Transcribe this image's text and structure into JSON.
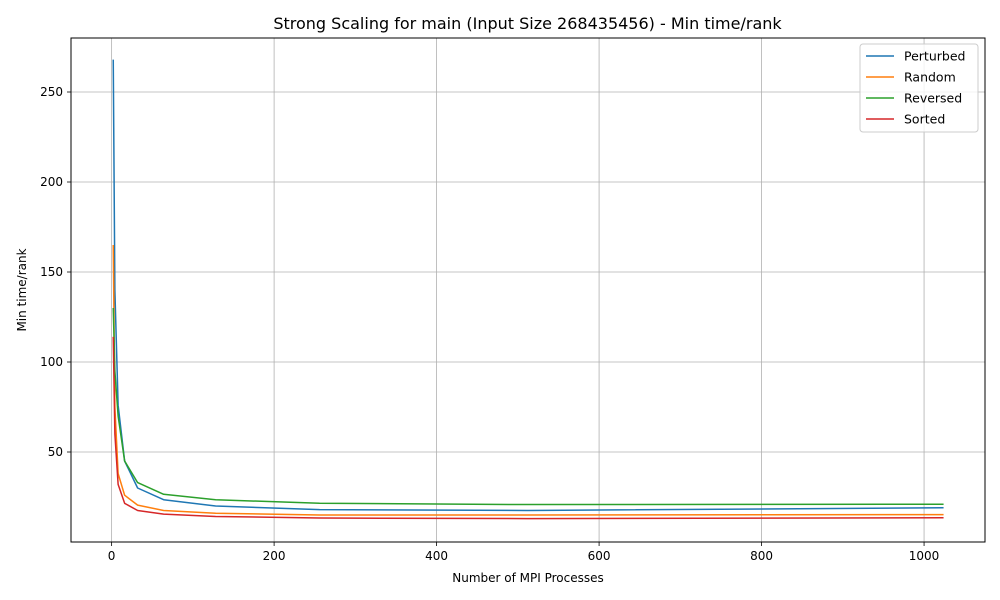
{
  "chart_data": {
    "type": "line",
    "title": "Strong Scaling for main (Input Size 268435456) - Min time/rank",
    "xlabel": "Number of MPI Processes",
    "ylabel": "Min time/rank",
    "xlim": [
      -50,
      1075
    ],
    "ylim": [
      0,
      280
    ],
    "xticks": [
      0,
      200,
      400,
      600,
      800,
      1000
    ],
    "yticks": [
      50,
      100,
      150,
      200,
      250
    ],
    "grid": true,
    "legend_position": "top-right",
    "x": [
      2,
      4,
      8,
      16,
      32,
      64,
      128,
      256,
      512,
      1024
    ],
    "series": [
      {
        "name": "Perturbed",
        "color": "#1f77b4",
        "values": [
          268,
          140,
          76,
          45,
          30,
          23.5,
          20,
          18,
          17.5,
          19
        ]
      },
      {
        "name": "Random",
        "color": "#ff7f0e",
        "values": [
          165,
          75,
          38,
          26,
          20.5,
          17.5,
          16,
          15,
          15,
          15.2
        ]
      },
      {
        "name": "Reversed",
        "color": "#2ca02c",
        "values": [
          130,
          95,
          70,
          45,
          33,
          26.5,
          23.5,
          21.5,
          20.8,
          21
        ]
      },
      {
        "name": "Sorted",
        "color": "#d62728",
        "values": [
          114,
          60,
          32,
          21.5,
          17.5,
          15.5,
          14.2,
          13.3,
          13,
          13.5
        ]
      }
    ]
  }
}
